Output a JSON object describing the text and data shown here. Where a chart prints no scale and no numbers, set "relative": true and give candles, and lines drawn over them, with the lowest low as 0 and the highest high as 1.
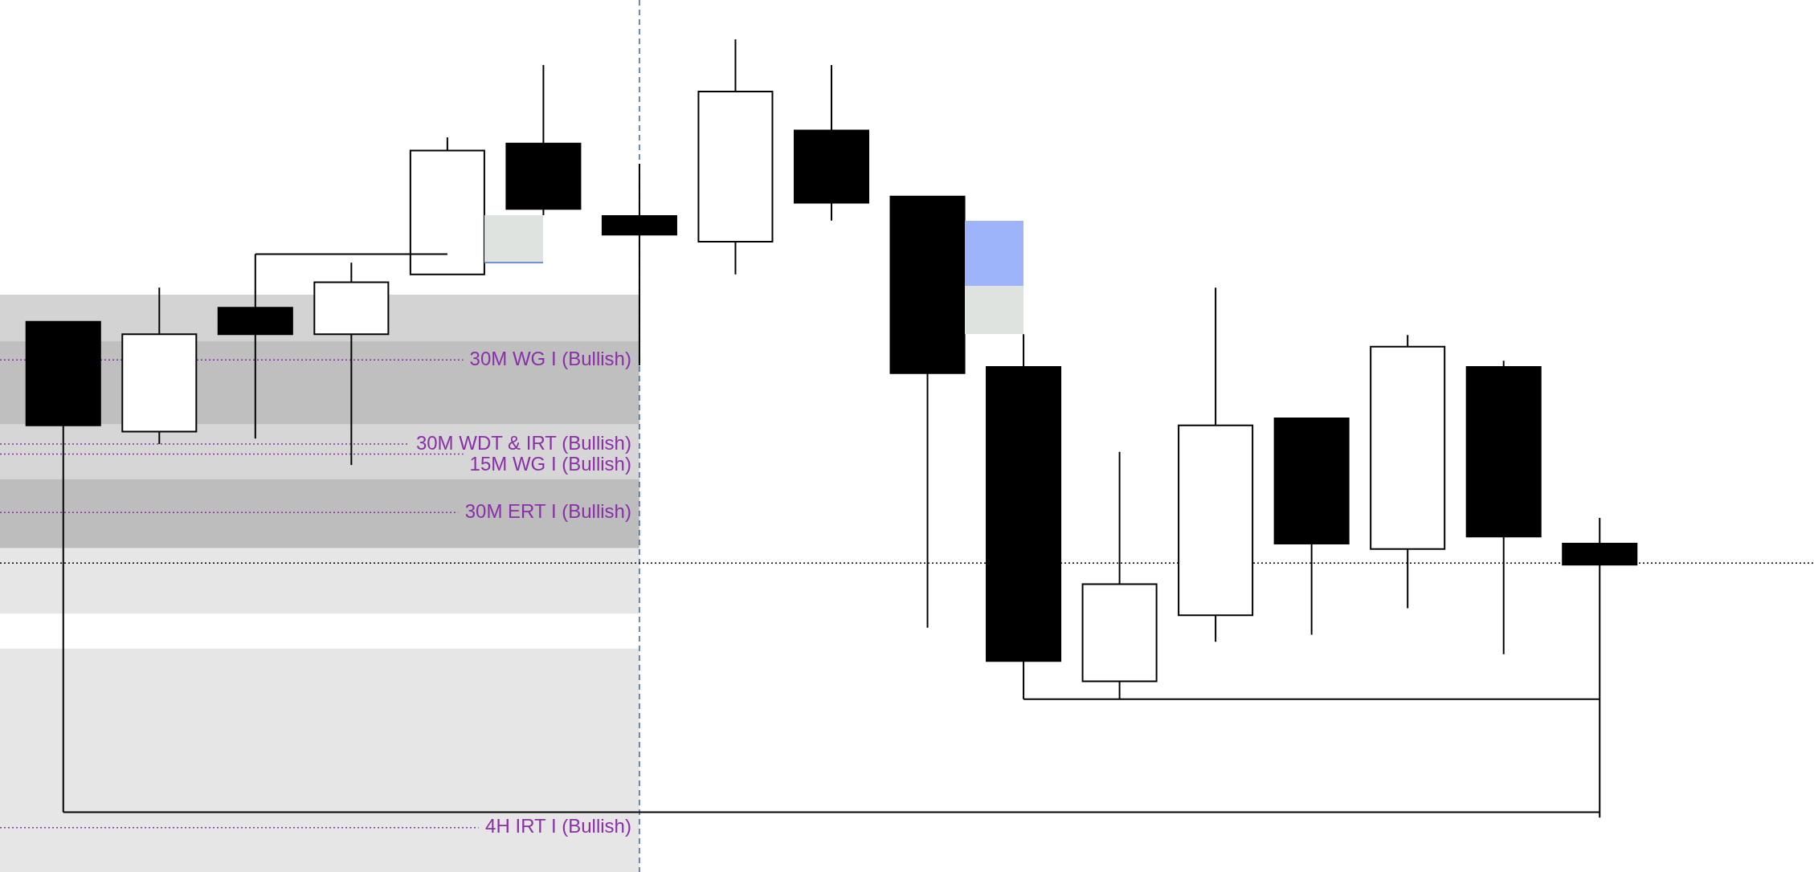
{
  "chart_data": {
    "type": "candlestick",
    "relative": true,
    "categories": [
      null,
      null,
      null,
      null,
      null,
      null,
      null,
      null,
      null,
      null,
      null,
      null,
      null,
      null,
      null,
      null,
      null
    ],
    "ohlc": [
      [
        0.637,
        0.637,
        0.007,
        0.504
      ],
      [
        0.496,
        0.681,
        0.48,
        0.621
      ],
      [
        0.655,
        0.724,
        0.487,
        0.621
      ],
      [
        0.621,
        0.713,
        0.453,
        0.688
      ],
      [
        0.698,
        0.874,
        0.698,
        0.857
      ],
      [
        0.866,
        0.967,
        0.774,
        0.782
      ],
      [
        0.773,
        0.84,
        0.581,
        0.749
      ],
      [
        0.74,
        1,
        0.698,
        0.933
      ],
      [
        0.883,
        0.967,
        0.767,
        0.79
      ],
      [
        0.798,
        0.798,
        0.244,
        0.571
      ],
      [
        0.579,
        0.621,
        0.152,
        0.201
      ],
      [
        0.175,
        0.47,
        0.152,
        0.3
      ],
      [
        0.26,
        0.681,
        0.226,
        0.504
      ],
      [
        0.513,
        0.513,
        0.235,
        0.352
      ],
      [
        0.345,
        0.62,
        0.269,
        0.605
      ],
      [
        0.579,
        0.587,
        0.21,
        0.361
      ],
      [
        0.352,
        0.385,
        0,
        0.325
      ]
    ],
    "colors": [
      "#000000",
      "#ffffff",
      "#000000",
      "#ffffff",
      "#ffffff",
      "#000000",
      "#000000",
      "#ffffff",
      "#000000",
      "#000000",
      "#000000",
      "#ffffff",
      "#ffffff",
      "#000000",
      "#ffffff",
      "#000000",
      "#000000"
    ],
    "series": [
      {
        "type": "line",
        "color": "#000000",
        "values": [
          null,
          null,
          0.724,
          null,
          0.724,
          null,
          null,
          null,
          null,
          null,
          null,
          null,
          null,
          null,
          null,
          null,
          null
        ]
      },
      {
        "type": "line",
        "color": "#000000",
        "values": [
          null,
          null,
          null,
          null,
          null,
          null,
          null,
          null,
          null,
          null,
          0.152,
          null,
          null,
          null,
          null,
          null,
          0.152
        ]
      },
      {
        "type": "line",
        "color": "#000000",
        "values": [
          0.007,
          null,
          null,
          null,
          null,
          null,
          null,
          null,
          null,
          null,
          null,
          null,
          null,
          null,
          null,
          null,
          0.007
        ]
      }
    ],
    "bands": [
      {
        "axis": "y",
        "from": 0.612,
        "to": 0.672,
        "color": "#d3d3d3"
      },
      {
        "axis": "y",
        "from": 0.505,
        "to": 0.612,
        "color": "#bfbfbf"
      },
      {
        "axis": "y",
        "from": 0.435,
        "to": 0.505,
        "color": "#d6d6d6"
      },
      {
        "axis": "y",
        "from": 0.346,
        "to": 0.435,
        "color": "#bdbdbd"
      },
      {
        "axis": "y",
        "from": 0.262,
        "to": 0.346,
        "color": "#e6e6e6"
      },
      {
        "axis": "y",
        "from": -0.07,
        "to": 0.217,
        "color": "#e6e6e6"
      }
    ],
    "ref_lines": [
      {
        "axis": "y",
        "value": 0.588,
        "label": "30M WG I (Bullish)",
        "color": "#8b2fa8",
        "line_style": "dotted"
      },
      {
        "axis": "y",
        "value": 0.48,
        "label": "30M WDT & IRT (Bullish)",
        "color": "#8b2fa8",
        "line_style": "dotted"
      },
      {
        "axis": "y",
        "value": 0.467,
        "label": "15M WG I (Bullish)",
        "color": "#8b2fa8",
        "line_style": "dotted"
      },
      {
        "axis": "y",
        "value": 0.392,
        "label": "30M ERT I (Bullish)",
        "color": "#8b2fa8",
        "line_style": "dotted"
      },
      {
        "axis": "y",
        "value": -0.013,
        "label": "4H IRT I (Bullish)",
        "color": "#8b2fa8",
        "line_style": "dotted"
      },
      {
        "axis": "y",
        "value": 0.327,
        "color": "#000000",
        "line_style": "dotted"
      }
    ]
  }
}
